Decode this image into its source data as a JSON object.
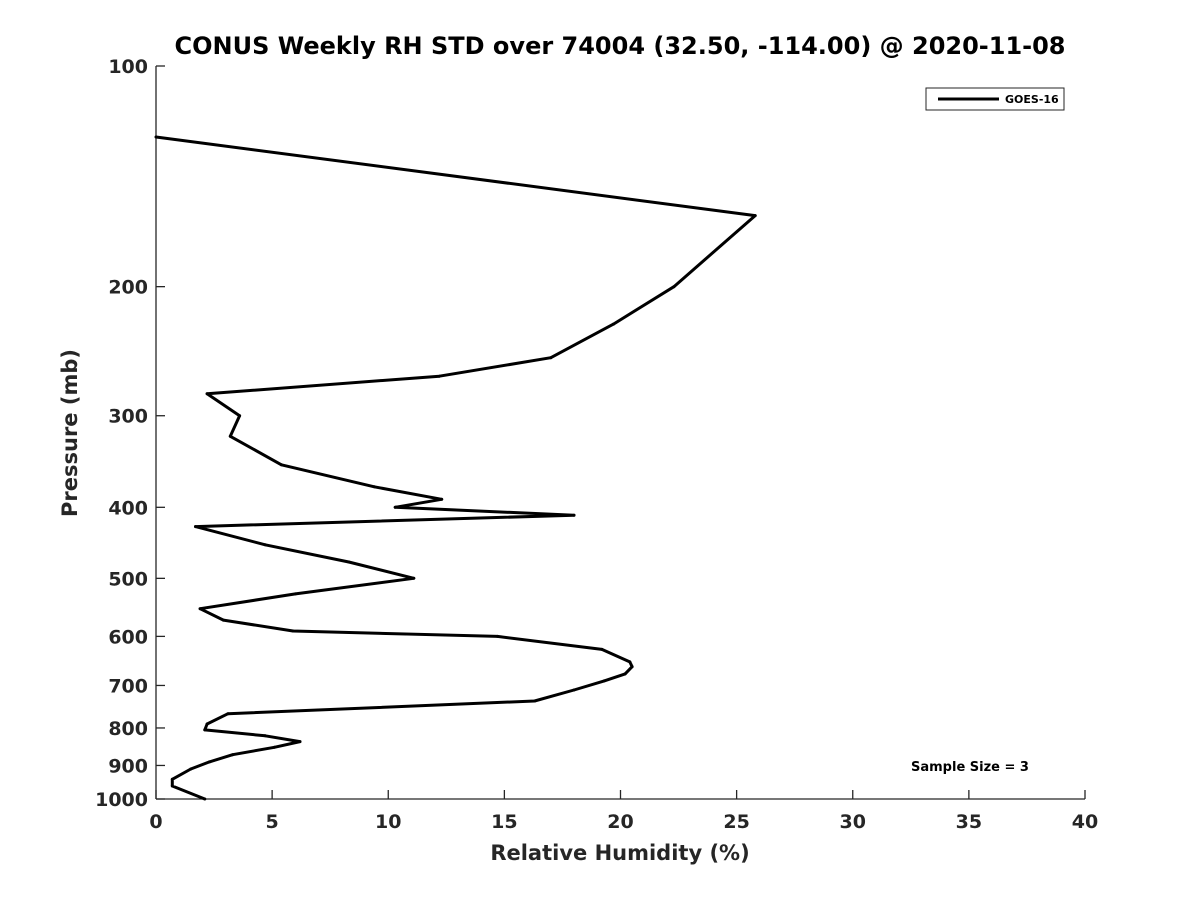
{
  "chart_data": {
    "type": "line",
    "title": "CONUS Weekly RH STD over 74004 (32.50, -114.00) @ 2020-11-08",
    "xlabel": "Relative Humidity (%)",
    "ylabel": "Pressure (mb)",
    "xlim": [
      0,
      40
    ],
    "ylim": [
      100,
      1000
    ],
    "yscale": "log",
    "y_reversed": true,
    "grid": false,
    "x_ticks": [
      "0",
      "5",
      "10",
      "15",
      "20",
      "25",
      "30",
      "35",
      "40"
    ],
    "y_ticks": [
      "100",
      "200",
      "300",
      "400",
      "500",
      "600",
      "700",
      "800",
      "900",
      "1000"
    ],
    "legend": {
      "position": "top-right",
      "entries": [
        "GOES-16"
      ]
    },
    "annotation": "Sample Size = 3",
    "series": [
      {
        "name": "GOES-16",
        "color": "#000000",
        "x": [
          0.0,
          25.8,
          22.3,
          19.7,
          17.0,
          12.2,
          2.2,
          3.6,
          3.2,
          5.4,
          9.4,
          12.3,
          10.3,
          18.0,
          1.7,
          4.7,
          8.3,
          11.1,
          6.0,
          1.9,
          2.9,
          5.9,
          14.7,
          19.2,
          20.4,
          20.5,
          20.2,
          19.3,
          18.0,
          16.3,
          3.1,
          2.2,
          2.1,
          4.7,
          6.2,
          5.1,
          3.3,
          2.3,
          1.5,
          0.7,
          0.7,
          2.1
        ],
        "y": [
          125,
          160,
          200,
          225,
          250,
          265,
          280,
          300,
          320,
          350,
          375,
          390,
          400,
          410,
          425,
          450,
          475,
          500,
          525,
          550,
          570,
          590,
          600,
          625,
          650,
          660,
          675,
          690,
          710,
          735,
          765,
          790,
          805,
          820,
          835,
          850,
          870,
          890,
          910,
          940,
          960,
          1000
        ]
      }
    ]
  }
}
